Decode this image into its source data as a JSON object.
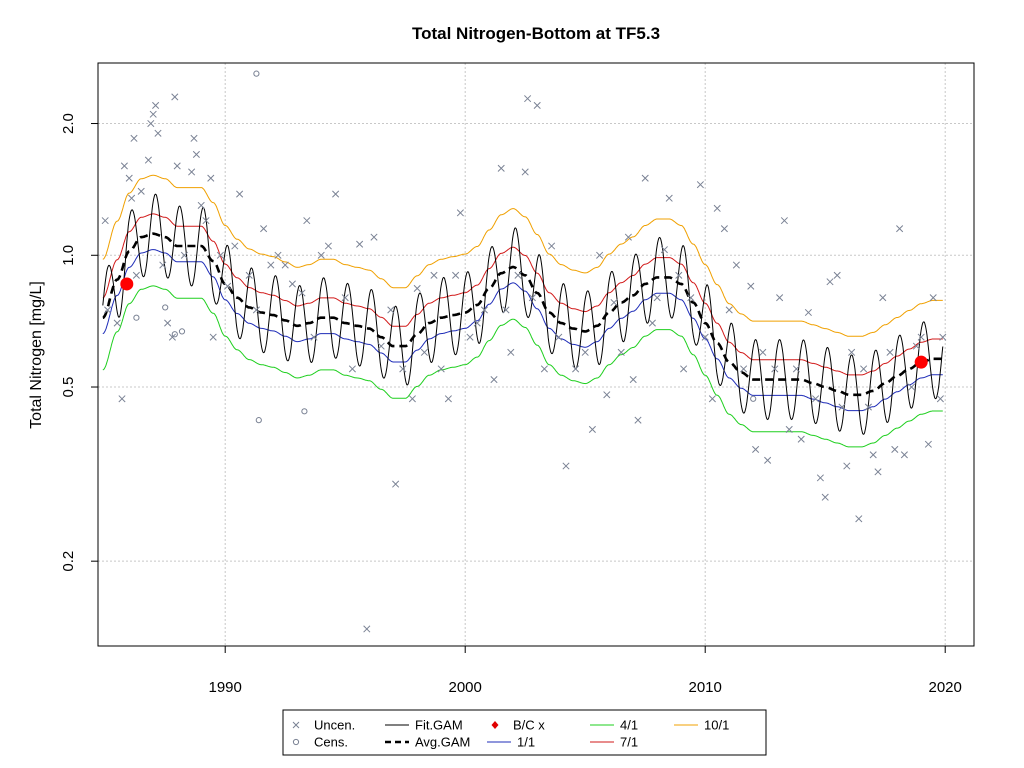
{
  "chart_data": {
    "type": "scatter",
    "title": "Total Nitrogen-Bottom at TF5.3",
    "xlabel": "",
    "ylabel": "Total Nitrogen [mg/L]",
    "x_ticks": [
      1990,
      2000,
      2010,
      2020
    ],
    "y_ticks": [
      0.2,
      0.5,
      1.0,
      2.0
    ],
    "y_tick_labels": [
      "0.2",
      "0.5",
      "1.0",
      "2.0"
    ],
    "xlim": [
      1984.7,
      2021.2
    ],
    "ylim": [
      0.128,
      2.75
    ],
    "y_scale": "log",
    "grid": true,
    "legend_position": "bottom",
    "legend": [
      {
        "label": "Uncen.",
        "style": "cross",
        "color": "#7a8294"
      },
      {
        "label": "Cens.",
        "style": "circle",
        "color": "#7a8294"
      },
      {
        "label": "Fit.GAM",
        "style": "line",
        "color": "#000000"
      },
      {
        "label": "Avg.GAM",
        "style": "dashed",
        "color": "#000000"
      },
      {
        "label": "B/C x",
        "style": "diamond",
        "color": "#e00000"
      },
      {
        "label": "1/1",
        "style": "line",
        "color": "#1f2db8"
      },
      {
        "label": "4/1",
        "style": "line",
        "color": "#1ecf1e"
      },
      {
        "label": "7/1",
        "style": "line",
        "color": "#d21a1a"
      },
      {
        "label": "10/1",
        "style": "line",
        "color": "#f0a000"
      }
    ],
    "colors": {
      "points": "#7a8294",
      "fit": "#000000",
      "avg": "#000000",
      "s_1_1": "#1f2db8",
      "s_4_1": "#1ecf1e",
      "s_7_1": "#d21a1a",
      "s_10_1": "#f0a000",
      "bc": "#ff0000",
      "grid": "#c8c8c8"
    },
    "avg_gam_knots": {
      "x": [
        1984.9,
        1985.5,
        1986.0,
        1986.5,
        1987.0,
        1987.5,
        1988.0,
        1988.5,
        1989.0,
        1989.5,
        1990.0,
        1990.5,
        1991.0,
        1991.5,
        1992.0,
        1992.5,
        1993.0,
        1993.5,
        1994.0,
        1994.5,
        1995.0,
        1995.5,
        1996.0,
        1996.5,
        1997.0,
        1997.5,
        1998.0,
        1998.5,
        1999.0,
        1999.5,
        2000.0,
        2000.5,
        2001.0,
        2001.5,
        2002.0,
        2002.5,
        2003.0,
        2003.5,
        2004.0,
        2004.5,
        2005.0,
        2005.5,
        2006.0,
        2006.5,
        2007.0,
        2007.5,
        2008.0,
        2008.5,
        2009.0,
        2009.5,
        2010.0,
        2010.5,
        2011.0,
        2011.5,
        2012.0,
        2012.5,
        2013.0,
        2013.5,
        2014.0,
        2014.5,
        2015.0,
        2015.5,
        2016.0,
        2016.5,
        2017.0,
        2017.5,
        2018.0,
        2018.5,
        2019.0,
        2019.5,
        2019.9
      ],
      "y": [
        0.72,
        0.88,
        1.02,
        1.1,
        1.12,
        1.1,
        1.05,
        1.05,
        1.05,
        0.97,
        0.86,
        0.8,
        0.76,
        0.74,
        0.73,
        0.71,
        0.69,
        0.7,
        0.72,
        0.72,
        0.7,
        0.69,
        0.68,
        0.65,
        0.62,
        0.62,
        0.66,
        0.7,
        0.72,
        0.73,
        0.74,
        0.77,
        0.84,
        0.91,
        0.94,
        0.9,
        0.82,
        0.74,
        0.7,
        0.68,
        0.67,
        0.69,
        0.74,
        0.78,
        0.81,
        0.86,
        0.89,
        0.89,
        0.86,
        0.78,
        0.7,
        0.63,
        0.57,
        0.54,
        0.52,
        0.52,
        0.52,
        0.52,
        0.52,
        0.51,
        0.5,
        0.49,
        0.48,
        0.48,
        0.49,
        0.51,
        0.53,
        0.55,
        0.57,
        0.58,
        0.58
      ]
    },
    "series_ratios": [
      {
        "name": "1/1",
        "ratio": 0.92
      },
      {
        "name": "4/1",
        "ratio": 0.76
      },
      {
        "name": "7/1",
        "ratio": 1.11
      },
      {
        "name": "10/1",
        "ratio": 1.36
      }
    ],
    "fit_gam_amplitude": 0.21,
    "bc_points": [
      {
        "x": 1985.9,
        "y": 0.86
      },
      {
        "x": 2019.0,
        "y": 0.57
      }
    ],
    "uncensored": [
      {
        "x": 1985.0,
        "y": 1.2
      },
      {
        "x": 1985.1,
        "y": 0.75
      },
      {
        "x": 1985.5,
        "y": 0.7
      },
      {
        "x": 1985.7,
        "y": 0.47
      },
      {
        "x": 1985.8,
        "y": 1.6
      },
      {
        "x": 1986.0,
        "y": 1.5
      },
      {
        "x": 1986.1,
        "y": 1.35
      },
      {
        "x": 1986.2,
        "y": 1.85
      },
      {
        "x": 1986.3,
        "y": 0.9
      },
      {
        "x": 1986.5,
        "y": 1.4
      },
      {
        "x": 1986.8,
        "y": 1.65
      },
      {
        "x": 1986.9,
        "y": 2.0
      },
      {
        "x": 1987.0,
        "y": 2.1
      },
      {
        "x": 1987.1,
        "y": 2.2
      },
      {
        "x": 1987.2,
        "y": 1.9
      },
      {
        "x": 1987.4,
        "y": 0.95
      },
      {
        "x": 1987.6,
        "y": 0.7
      },
      {
        "x": 1987.8,
        "y": 0.65
      },
      {
        "x": 1987.9,
        "y": 2.3
      },
      {
        "x": 1988.0,
        "y": 1.6
      },
      {
        "x": 1988.3,
        "y": 1.0
      },
      {
        "x": 1988.6,
        "y": 1.55
      },
      {
        "x": 1988.7,
        "y": 1.85
      },
      {
        "x": 1988.8,
        "y": 1.7
      },
      {
        "x": 1989.0,
        "y": 1.3
      },
      {
        "x": 1989.2,
        "y": 1.2
      },
      {
        "x": 1989.4,
        "y": 1.5
      },
      {
        "x": 1989.5,
        "y": 0.65
      },
      {
        "x": 1989.8,
        "y": 1.0
      },
      {
        "x": 1990.1,
        "y": 0.85
      },
      {
        "x": 1990.4,
        "y": 1.05
      },
      {
        "x": 1990.6,
        "y": 1.38
      },
      {
        "x": 1991.0,
        "y": 0.9
      },
      {
        "x": 1991.3,
        "y": 0.75
      },
      {
        "x": 1991.6,
        "y": 1.15
      },
      {
        "x": 1991.9,
        "y": 0.95
      },
      {
        "x": 1992.2,
        "y": 1.0
      },
      {
        "x": 1992.5,
        "y": 0.95
      },
      {
        "x": 1992.8,
        "y": 0.86
      },
      {
        "x": 1993.2,
        "y": 0.82
      },
      {
        "x": 1993.4,
        "y": 1.2
      },
      {
        "x": 1993.7,
        "y": 0.65
      },
      {
        "x": 1994.0,
        "y": 1.0
      },
      {
        "x": 1994.3,
        "y": 1.05
      },
      {
        "x": 1994.6,
        "y": 1.38
      },
      {
        "x": 1995.0,
        "y": 0.8
      },
      {
        "x": 1995.3,
        "y": 0.55
      },
      {
        "x": 1995.6,
        "y": 1.06
      },
      {
        "x": 1995.9,
        "y": 0.14
      },
      {
        "x": 1996.2,
        "y": 1.1
      },
      {
        "x": 1996.5,
        "y": 0.62
      },
      {
        "x": 1996.9,
        "y": 0.75
      },
      {
        "x": 1997.1,
        "y": 0.3
      },
      {
        "x": 1997.4,
        "y": 0.55
      },
      {
        "x": 1997.8,
        "y": 0.47
      },
      {
        "x": 1998.0,
        "y": 0.84
      },
      {
        "x": 1998.3,
        "y": 0.6
      },
      {
        "x": 1998.7,
        "y": 0.9
      },
      {
        "x": 1999.0,
        "y": 0.55
      },
      {
        "x": 1999.3,
        "y": 0.47
      },
      {
        "x": 1999.6,
        "y": 0.9
      },
      {
        "x": 1999.8,
        "y": 1.25
      },
      {
        "x": 2000.2,
        "y": 0.65
      },
      {
        "x": 2000.5,
        "y": 0.7
      },
      {
        "x": 2000.8,
        "y": 0.75
      },
      {
        "x": 2001.2,
        "y": 0.52
      },
      {
        "x": 2001.5,
        "y": 1.58
      },
      {
        "x": 2001.7,
        "y": 0.75
      },
      {
        "x": 2001.9,
        "y": 0.6
      },
      {
        "x": 2002.2,
        "y": 0.9
      },
      {
        "x": 2002.5,
        "y": 1.55
      },
      {
        "x": 2002.6,
        "y": 2.28
      },
      {
        "x": 2002.8,
        "y": 0.8
      },
      {
        "x": 2003.0,
        "y": 2.2
      },
      {
        "x": 2003.3,
        "y": 0.55
      },
      {
        "x": 2003.6,
        "y": 1.05
      },
      {
        "x": 2003.9,
        "y": 0.65
      },
      {
        "x": 2004.2,
        "y": 0.33
      },
      {
        "x": 2004.6,
        "y": 0.55
      },
      {
        "x": 2005.0,
        "y": 0.6
      },
      {
        "x": 2005.3,
        "y": 0.4
      },
      {
        "x": 2005.6,
        "y": 1.0
      },
      {
        "x": 2005.9,
        "y": 0.48
      },
      {
        "x": 2006.2,
        "y": 0.78
      },
      {
        "x": 2006.5,
        "y": 0.6
      },
      {
        "x": 2006.8,
        "y": 1.1
      },
      {
        "x": 2007.0,
        "y": 0.52
      },
      {
        "x": 2007.2,
        "y": 0.42
      },
      {
        "x": 2007.5,
        "y": 1.5
      },
      {
        "x": 2007.8,
        "y": 0.7
      },
      {
        "x": 2008.0,
        "y": 0.8
      },
      {
        "x": 2008.3,
        "y": 1.03
      },
      {
        "x": 2008.5,
        "y": 1.35
      },
      {
        "x": 2008.9,
        "y": 0.9
      },
      {
        "x": 2009.1,
        "y": 0.55
      },
      {
        "x": 2009.4,
        "y": 0.8
      },
      {
        "x": 2009.8,
        "y": 1.45
      },
      {
        "x": 2010.0,
        "y": 0.65
      },
      {
        "x": 2010.3,
        "y": 0.47
      },
      {
        "x": 2010.5,
        "y": 1.28
      },
      {
        "x": 2010.8,
        "y": 1.15
      },
      {
        "x": 2011.0,
        "y": 0.75
      },
      {
        "x": 2011.3,
        "y": 0.95
      },
      {
        "x": 2011.6,
        "y": 0.55
      },
      {
        "x": 2011.9,
        "y": 0.85
      },
      {
        "x": 2012.1,
        "y": 0.36
      },
      {
        "x": 2012.4,
        "y": 0.6
      },
      {
        "x": 2012.6,
        "y": 0.34
      },
      {
        "x": 2012.9,
        "y": 0.55
      },
      {
        "x": 2013.1,
        "y": 0.8
      },
      {
        "x": 2013.3,
        "y": 1.2
      },
      {
        "x": 2013.5,
        "y": 0.4
      },
      {
        "x": 2013.8,
        "y": 0.55
      },
      {
        "x": 2014.0,
        "y": 0.38
      },
      {
        "x": 2014.3,
        "y": 0.74
      },
      {
        "x": 2014.6,
        "y": 0.47
      },
      {
        "x": 2014.8,
        "y": 0.31
      },
      {
        "x": 2015.0,
        "y": 0.28
      },
      {
        "x": 2015.2,
        "y": 0.87
      },
      {
        "x": 2015.5,
        "y": 0.9
      },
      {
        "x": 2015.7,
        "y": 0.45
      },
      {
        "x": 2015.9,
        "y": 0.33
      },
      {
        "x": 2016.1,
        "y": 0.6
      },
      {
        "x": 2016.4,
        "y": 0.25
      },
      {
        "x": 2016.6,
        "y": 0.55
      },
      {
        "x": 2016.8,
        "y": 0.45
      },
      {
        "x": 2017.0,
        "y": 0.35
      },
      {
        "x": 2017.2,
        "y": 0.32
      },
      {
        "x": 2017.4,
        "y": 0.8
      },
      {
        "x": 2017.7,
        "y": 0.6
      },
      {
        "x": 2017.9,
        "y": 0.36
      },
      {
        "x": 2018.1,
        "y": 1.15
      },
      {
        "x": 2018.3,
        "y": 0.35
      },
      {
        "x": 2018.6,
        "y": 0.5
      },
      {
        "x": 2018.8,
        "y": 0.62
      },
      {
        "x": 2019.0,
        "y": 0.65
      },
      {
        "x": 2019.3,
        "y": 0.37
      },
      {
        "x": 2019.5,
        "y": 0.8
      },
      {
        "x": 2019.8,
        "y": 0.47
      },
      {
        "x": 2019.9,
        "y": 0.65
      }
    ],
    "censored": [
      {
        "x": 1986.3,
        "y": 0.72
      },
      {
        "x": 1987.5,
        "y": 0.76
      },
      {
        "x": 1987.9,
        "y": 0.66
      },
      {
        "x": 1988.2,
        "y": 0.67
      },
      {
        "x": 1991.3,
        "y": 2.6
      },
      {
        "x": 1991.4,
        "y": 0.42
      },
      {
        "x": 1993.3,
        "y": 0.44
      },
      {
        "x": 2012.0,
        "y": 0.47
      }
    ]
  }
}
